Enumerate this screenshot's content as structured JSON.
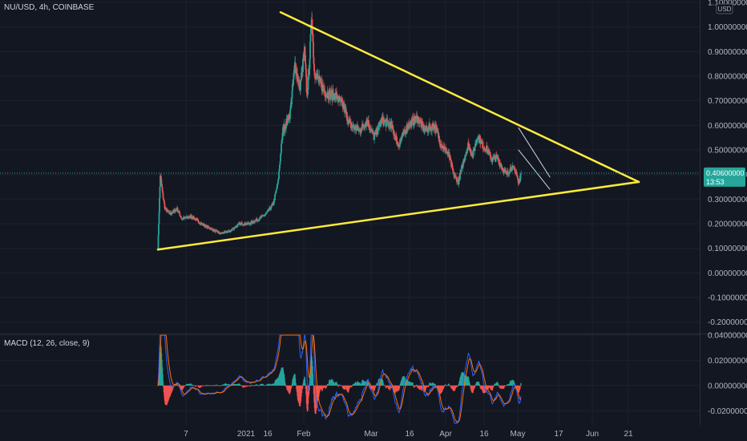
{
  "header": {
    "symbol_line": "NU/USD, 4h, COINBASE",
    "currency": "USD"
  },
  "price_axis": {
    "ticks": [
      "1.10000000",
      "1.00000000",
      "0.90000000",
      "0.80000000",
      "0.70000000",
      "0.60000000",
      "0.50000000",
      "0.40000000",
      "0.30000000",
      "0.20000000",
      "0.10000000",
      "0.00000000",
      "-0.10000000",
      "-0.20000000"
    ],
    "tick_values": [
      1.1,
      1.0,
      0.9,
      0.8,
      0.7,
      0.6,
      0.5,
      0.4,
      0.3,
      0.2,
      0.1,
      0.0,
      -0.1,
      -0.2
    ],
    "range": [
      -0.24,
      1.1
    ]
  },
  "last_price": {
    "value": 0.406,
    "label": "0.40600000",
    "countdown": "13:53",
    "color": "#26a69a"
  },
  "macd": {
    "label": "MACD (12, 26, close, 9)",
    "ticks": [
      "0.04000000",
      "0.02000000",
      "0.00000000",
      "-0.02000000"
    ],
    "tick_values": [
      0.04,
      0.02,
      0.0,
      -0.02
    ],
    "range": [
      -0.03,
      0.04
    ],
    "macd_color": "#2962ff",
    "signal_color": "#ff6d00",
    "hist_up_color": "#26a69a",
    "hist_down_color": "#ef5350"
  },
  "time_axis": {
    "labels": [
      "7",
      "2021",
      "16",
      "Feb",
      "Mar",
      "16",
      "Apr",
      "16",
      "May",
      "17",
      "Jun",
      "21"
    ],
    "label_days": [
      7,
      32,
      41,
      56,
      84,
      100,
      115,
      131,
      145,
      162,
      176,
      191
    ]
  },
  "drawings": {
    "line_color": "#ffeb3b",
    "channel_color": "#d1d4dc",
    "support_line": [
      [
        0,
        0.095
      ],
      [
        200,
        0.37
      ]
    ],
    "resistance_line": [
      [
        51,
        1.06
      ],
      [
        200,
        0.37
      ]
    ],
    "channel_upper": [
      [
        150,
        0.59
      ],
      [
        163,
        0.39
      ]
    ],
    "channel_lower": [
      [
        150,
        0.5
      ],
      [
        163,
        0.34
      ]
    ]
  },
  "colors": {
    "background": "#131722",
    "up": "#26a69a",
    "down": "#ef5350"
  },
  "chart_data": {
    "type": "candlestick",
    "x_unit": "days since start (first candle ~Dec 7, 2020)",
    "ylim": [
      -0.24,
      1.1
    ],
    "price_keypoints": [
      [
        0,
        0.1
      ],
      [
        1,
        0.4
      ],
      [
        2,
        0.32
      ],
      [
        3,
        0.26
      ],
      [
        5,
        0.24
      ],
      [
        8,
        0.26
      ],
      [
        10,
        0.22
      ],
      [
        14,
        0.23
      ],
      [
        18,
        0.2
      ],
      [
        22,
        0.18
      ],
      [
        26,
        0.16
      ],
      [
        30,
        0.17
      ],
      [
        34,
        0.2
      ],
      [
        38,
        0.2
      ],
      [
        42,
        0.22
      ],
      [
        45,
        0.24
      ],
      [
        48,
        0.28
      ],
      [
        50,
        0.37
      ],
      [
        51,
        0.48
      ],
      [
        52,
        0.58
      ],
      [
        53,
        0.6
      ],
      [
        55,
        0.65
      ],
      [
        57,
        0.85
      ],
      [
        59,
        0.75
      ],
      [
        61,
        0.9
      ],
      [
        62,
        0.72
      ],
      [
        63,
        0.85
      ],
      [
        64,
        1.05
      ],
      [
        65,
        0.82
      ],
      [
        67,
        0.78
      ],
      [
        70,
        0.73
      ],
      [
        74,
        0.72
      ],
      [
        77,
        0.68
      ],
      [
        80,
        0.6
      ],
      [
        84,
        0.58
      ],
      [
        87,
        0.62
      ],
      [
        90,
        0.55
      ],
      [
        93,
        0.62
      ],
      [
        97,
        0.6
      ],
      [
        100,
        0.52
      ],
      [
        104,
        0.6
      ],
      [
        108,
        0.63
      ],
      [
        111,
        0.58
      ],
      [
        115,
        0.6
      ],
      [
        118,
        0.52
      ],
      [
        121,
        0.48
      ],
      [
        123,
        0.4
      ],
      [
        125,
        0.37
      ],
      [
        127,
        0.45
      ],
      [
        129,
        0.52
      ],
      [
        131,
        0.48
      ],
      [
        133,
        0.56
      ],
      [
        135,
        0.52
      ],
      [
        137,
        0.5
      ],
      [
        139,
        0.46
      ],
      [
        141,
        0.47
      ],
      [
        143,
        0.43
      ],
      [
        145,
        0.4
      ],
      [
        147,
        0.43
      ],
      [
        149,
        0.41
      ],
      [
        150,
        0.36
      ],
      [
        151,
        0.406
      ]
    ]
  }
}
